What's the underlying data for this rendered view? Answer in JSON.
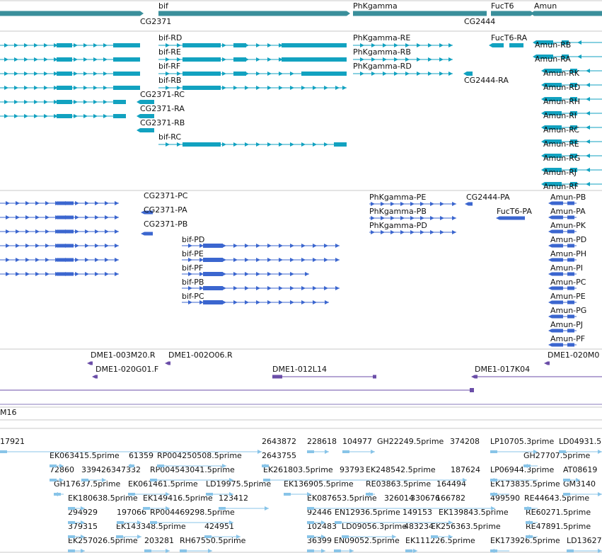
{
  "colors": {
    "gene": "#3a8f9b",
    "transcript": "#12a2c0",
    "cds": "#3b66cf",
    "clone": "#6b4ea8",
    "est": "#88c4e8",
    "divider": "#c9c9c9"
  },
  "genes": [
    {
      "label": "bif",
      "segs": [
        [
          224,
          490
        ]
      ]
    },
    {
      "label": "CG2371",
      "segs": [
        [
          0,
          198
        ]
      ]
    },
    {
      "label": "PhKgamma",
      "segs": [
        [
          499,
          657
        ]
      ]
    },
    {
      "label": "CG2444",
      "segs": [
        [
          656,
          688
        ]
      ]
    },
    {
      "label": "FucT6",
      "segs": [
        [
          694,
          750
        ]
      ]
    },
    {
      "label": "Amun",
      "segs": [
        [
          755,
          851
        ]
      ]
    }
  ],
  "transcripts": [
    {
      "label": "bif-RD"
    },
    {
      "label": "bif-RE"
    },
    {
      "label": "bif-RF"
    },
    {
      "label": "bif-RB"
    },
    {
      "label": "bif-RC"
    },
    {
      "label": "CG2371-RC"
    },
    {
      "label": "CG2371-RA"
    },
    {
      "label": "CG2371-RB"
    },
    {
      "label": "PhKgamma-RE"
    },
    {
      "label": "PhKgamma-RB"
    },
    {
      "label": "PhKgamma-RD"
    },
    {
      "label": "CG2444-RA"
    },
    {
      "label": "FucT6-RA"
    },
    {
      "label": "Amun-RB"
    },
    {
      "label": "Amun-RA"
    },
    {
      "label": "Amun-RK"
    },
    {
      "label": "Amun-RD"
    },
    {
      "label": "Amun-RH"
    },
    {
      "label": "Amun-RI"
    },
    {
      "label": "Amun-RC"
    },
    {
      "label": "Amun-RE"
    },
    {
      "label": "Amun-RG"
    },
    {
      "label": "Amun-RJ"
    },
    {
      "label": "Amun-RF"
    }
  ],
  "proteins": [
    {
      "label": "CG2371-PC"
    },
    {
      "label": "CG2371-PA"
    },
    {
      "label": "CG2371-PB"
    },
    {
      "label": "bif-PD"
    },
    {
      "label": "bif-PE"
    },
    {
      "label": "bif-PF"
    },
    {
      "label": "bif-PB"
    },
    {
      "label": "bif-PC"
    },
    {
      "label": "PhKgamma-PE"
    },
    {
      "label": "PhKgamma-PB"
    },
    {
      "label": "PhKgamma-PD"
    },
    {
      "label": "CG2444-PA"
    },
    {
      "label": "FucT6-PA"
    },
    {
      "label": "Amun-PB"
    },
    {
      "label": "Amun-PA"
    },
    {
      "label": "Amun-PK"
    },
    {
      "label": "Amun-PD"
    },
    {
      "label": "Amun-PH"
    },
    {
      "label": "Amun-PI"
    },
    {
      "label": "Amun-PC"
    },
    {
      "label": "Amun-PE"
    },
    {
      "label": "Amun-PG"
    },
    {
      "label": "Amun-PJ"
    },
    {
      "label": "Amun-PF"
    }
  ],
  "clones": [
    {
      "label": "DME1-003M20.R"
    },
    {
      "label": "DME1-002O06.R"
    },
    {
      "label": "DME1-020M0"
    },
    {
      "label": "DME1-020G01.F"
    },
    {
      "label": "DME1-012L14"
    },
    {
      "label": "DME1-017K04"
    }
  ],
  "misc_label": "M16",
  "ests": [
    {
      "label": "17921"
    },
    {
      "label": "2643872"
    },
    {
      "label": "228618"
    },
    {
      "label": "104977"
    },
    {
      "label": "GH22249.5prime"
    },
    {
      "label": "374208"
    },
    {
      "label": "LP10705.3prime"
    },
    {
      "label": "LD04931.5"
    },
    {
      "label": "EK063415.5prime"
    },
    {
      "label": "61359"
    },
    {
      "label": "RP004250508.5prime"
    },
    {
      "label": "2643755"
    },
    {
      "label": "GH27707.5prime"
    },
    {
      "label": "72860"
    },
    {
      "label": "339426347332"
    },
    {
      "label": "RP004543041.5prime"
    },
    {
      "label": "EK261803.5prime"
    },
    {
      "label": "93793"
    },
    {
      "label": "EK248542.5prime"
    },
    {
      "label": "187624"
    },
    {
      "label": "LP06944.3prime"
    },
    {
      "label": "AT08619"
    },
    {
      "label": "GH17637.5prime"
    },
    {
      "label": "EK061461.5prime"
    },
    {
      "label": "LD19975.5prime"
    },
    {
      "label": "EK136905.5prime"
    },
    {
      "label": "RE03863.5prime"
    },
    {
      "label": "164494"
    },
    {
      "label": "EK173835.5prime"
    },
    {
      "label": "GM3140"
    },
    {
      "label": "EK180638.5prime"
    },
    {
      "label": "EK149416.5prime"
    },
    {
      "label": "123412"
    },
    {
      "label": "EK087653.5prime"
    },
    {
      "label": "326014"
    },
    {
      "label": "330676"
    },
    {
      "label": "166782"
    },
    {
      "label": "499590"
    },
    {
      "label": "RE44643.5prime"
    },
    {
      "label": "294929"
    },
    {
      "label": "197066"
    },
    {
      "label": "RP004469298.5prime"
    },
    {
      "label": "92446"
    },
    {
      "label": "EN12936.5prime"
    },
    {
      "label": "149153"
    },
    {
      "label": "EK139843.5prime"
    },
    {
      "label": "RE60271.5prime"
    },
    {
      "label": "379315"
    },
    {
      "label": "EK143348.5prime"
    },
    {
      "label": "424951"
    },
    {
      "label": "102483"
    },
    {
      "label": "LD09056.3prime"
    },
    {
      "label": "483234"
    },
    {
      "label": "EK256363.5prime"
    },
    {
      "label": "RE47891.5prime"
    },
    {
      "label": "EK257026.5prime"
    },
    {
      "label": "203281"
    },
    {
      "label": "RH67550.5prime"
    },
    {
      "label": "36399"
    },
    {
      "label": "EN09052.5prime"
    },
    {
      "label": "EK111226.5prime"
    },
    {
      "label": "EK173926.5prime"
    },
    {
      "label": "LD13627"
    }
  ]
}
